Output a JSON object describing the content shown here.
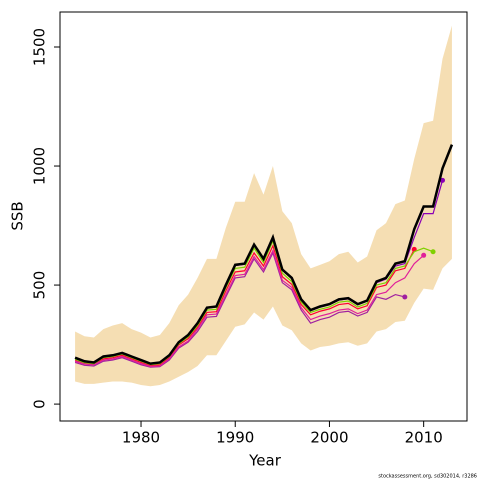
{
  "chart_data": {
    "type": "line",
    "x_label": "Year",
    "y_label": "SSB",
    "footer": "stockassessment.org, sd302014, r3286",
    "x": [
      1973,
      1974,
      1975,
      1976,
      1977,
      1978,
      1979,
      1980,
      1981,
      1982,
      1983,
      1984,
      1985,
      1986,
      1987,
      1988,
      1989,
      1990,
      1991,
      1992,
      1993,
      1994,
      1995,
      1996,
      1997,
      1998,
      1999,
      2000,
      2001,
      2002,
      2003,
      2004,
      2005,
      2006,
      2007,
      2008,
      2009,
      2010,
      2011,
      2012,
      2013
    ],
    "xlim": [
      1971.4,
      2014.6
    ],
    "xticks": [
      1980,
      1990,
      2000,
      2010
    ],
    "ylim": [
      -71,
      1647
    ],
    "yticks": [
      0,
      500,
      1000,
      1500
    ],
    "band": {
      "color": "#f5deb3",
      "upper": [
        305,
        285,
        280,
        315,
        330,
        340,
        315,
        300,
        280,
        290,
        340,
        415,
        460,
        530,
        610,
        610,
        740,
        850,
        850,
        970,
        880,
        1000,
        810,
        760,
        630,
        570,
        585,
        600,
        630,
        640,
        595,
        620,
        730,
        760,
        840,
        855,
        1030,
        1180,
        1190,
        1450,
        1590
      ],
      "lower": [
        95,
        85,
        85,
        90,
        95,
        95,
        90,
        80,
        75,
        80,
        95,
        115,
        135,
        160,
        205,
        205,
        265,
        325,
        335,
        385,
        355,
        410,
        330,
        310,
        255,
        225,
        240,
        245,
        255,
        260,
        245,
        255,
        305,
        315,
        345,
        350,
        425,
        485,
        480,
        570,
        610
      ]
    },
    "series": [
      {
        "color": "#a020a0",
        "values": [
          175,
          163,
          160,
          180,
          185,
          195,
          180,
          165,
          155,
          157,
          185,
          235,
          260,
          305,
          365,
          368,
          450,
          530,
          535,
          610,
          555,
          635,
          510,
          480,
          395,
          340,
          355,
          365,
          385,
          390,
          370,
          385,
          450,
          440,
          460,
          450,
          null,
          null,
          null,
          null,
          null
        ]
      },
      {
        "color": "#ff0030",
        "values": [
          185,
          170,
          168,
          190,
          195,
          205,
          190,
          175,
          162,
          165,
          195,
          248,
          275,
          322,
          385,
          388,
          475,
          555,
          560,
          635,
          580,
          665,
          535,
          503,
          418,
          375,
          390,
          400,
          418,
          423,
          400,
          413,
          490,
          500,
          560,
          570,
          650,
          null,
          null,
          null,
          null
        ]
      },
      {
        "color": "#e0209a",
        "values": [
          180,
          168,
          165,
          185,
          190,
          200,
          185,
          170,
          158,
          160,
          190,
          240,
          265,
          315,
          375,
          378,
          460,
          540,
          545,
          620,
          565,
          645,
          520,
          490,
          405,
          355,
          370,
          380,
          395,
          400,
          380,
          395,
          460,
          470,
          510,
          530,
          590,
          625,
          null,
          null,
          null
        ]
      },
      {
        "color": "#7fd000",
        "values": [
          188,
          174,
          170,
          195,
          200,
          210,
          195,
          180,
          166,
          170,
          200,
          253,
          282,
          330,
          395,
          398,
          488,
          570,
          575,
          655,
          595,
          685,
          550,
          515,
          428,
          385,
          398,
          408,
          428,
          433,
          408,
          423,
          500,
          510,
          570,
          580,
          640,
          655,
          640,
          null,
          null
        ]
      },
      {
        "color": "#8b00b5",
        "values": [
          193,
          178,
          173,
          198,
          203,
          213,
          198,
          183,
          168,
          173,
          203,
          258,
          288,
          338,
          403,
          408,
          497,
          582,
          587,
          667,
          607,
          697,
          562,
          527,
          437,
          392,
          407,
          417,
          437,
          442,
          417,
          432,
          510,
          525,
          580,
          590,
          700,
          800,
          800,
          940,
          null
        ]
      },
      {
        "color": "#000000",
        "values": [
          195,
          180,
          175,
          200,
          205,
          215,
          200,
          185,
          170,
          175,
          205,
          260,
          290,
          340,
          405,
          410,
          500,
          585,
          590,
          670,
          610,
          700,
          565,
          530,
          440,
          395,
          410,
          420,
          440,
          445,
          420,
          435,
          515,
          530,
          590,
          600,
          735,
          830,
          830,
          990,
          1090
        ]
      }
    ]
  }
}
